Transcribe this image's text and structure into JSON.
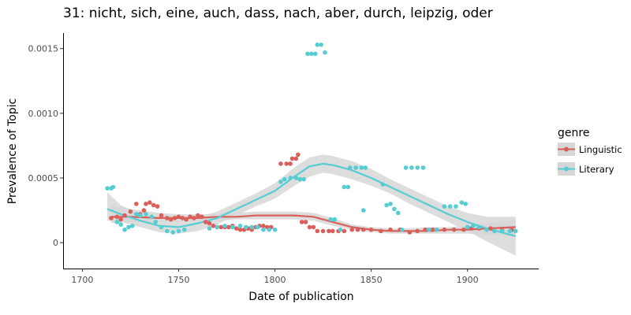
{
  "chart_data": {
    "type": "scatter",
    "title": "31: nicht, sich, eine, auch, dass, nach, aber, durch, leipzig, oder",
    "xlabel": "Date of publication",
    "ylabel": "Prevalence of Topic",
    "xlim": [
      1690,
      1937
    ],
    "ylim": [
      -0.0002,
      0.00162
    ],
    "x_ticks": [
      1700,
      1750,
      1800,
      1850,
      1900
    ],
    "x_tick_labels": [
      "1700",
      "1750",
      "1800",
      "1850",
      "1900"
    ],
    "y_ticks": [
      0,
      0.0005,
      0.001,
      0.0015
    ],
    "y_tick_labels": [
      "0",
      "0.0005",
      "0.0010",
      "0.0015"
    ],
    "grid": false,
    "legend": {
      "title": "genre",
      "placement": "right",
      "entries": [
        "Linguistic",
        "Literary"
      ]
    },
    "colors": {
      "Linguistic": "#d9605a",
      "Literary": "#56ccd3",
      "band": "#d7d7d7"
    },
    "series": [
      {
        "name": "Linguistic",
        "points": [
          [
            1715,
            0.00019
          ],
          [
            1718,
            0.0002
          ],
          [
            1720,
            0.00018
          ],
          [
            1722,
            0.00021
          ],
          [
            1725,
            0.00024
          ],
          [
            1728,
            0.0003
          ],
          [
            1730,
            0.00022
          ],
          [
            1732,
            0.00025
          ],
          [
            1733,
            0.0003
          ],
          [
            1735,
            0.00031
          ],
          [
            1737,
            0.00029
          ],
          [
            1739,
            0.00028
          ],
          [
            1741,
            0.00021
          ],
          [
            1744,
            0.00019
          ],
          [
            1746,
            0.00018
          ],
          [
            1748,
            0.00019
          ],
          [
            1750,
            0.0002
          ],
          [
            1752,
            0.00019
          ],
          [
            1754,
            0.00018
          ],
          [
            1756,
            0.0002
          ],
          [
            1758,
            0.00019
          ],
          [
            1760,
            0.00021
          ],
          [
            1762,
            0.0002
          ],
          [
            1764,
            0.00016
          ],
          [
            1766,
            0.00015
          ],
          [
            1768,
            0.00013
          ],
          [
            1770,
            0.00012
          ],
          [
            1772,
            0.00012
          ],
          [
            1774,
            0.00012
          ],
          [
            1776,
            0.00012
          ],
          [
            1778,
            0.00013
          ],
          [
            1780,
            0.00011
          ],
          [
            1782,
            0.0001
          ],
          [
            1784,
            0.0001
          ],
          [
            1786,
            0.00011
          ],
          [
            1788,
            0.0001
          ],
          [
            1790,
            0.00012
          ],
          [
            1792,
            0.00013
          ],
          [
            1794,
            0.00013
          ],
          [
            1796,
            0.00012
          ],
          [
            1798,
            0.00012
          ],
          [
            1803,
            0.00061
          ],
          [
            1806,
            0.00061
          ],
          [
            1808,
            0.00061
          ],
          [
            1809,
            0.00065
          ],
          [
            1811,
            0.00065
          ],
          [
            1812,
            0.00068
          ],
          [
            1814,
            0.00016
          ],
          [
            1816,
            0.00016
          ],
          [
            1818,
            0.00012
          ],
          [
            1820,
            0.00012
          ],
          [
            1822,
            9e-05
          ],
          [
            1825,
            9e-05
          ],
          [
            1828,
            9e-05
          ],
          [
            1830,
            9e-05
          ],
          [
            1833,
            9e-05
          ],
          [
            1836,
            9e-05
          ],
          [
            1840,
            0.0001
          ],
          [
            1843,
            0.0001
          ],
          [
            1846,
            0.0001
          ],
          [
            1850,
            0.0001
          ],
          [
            1855,
            9e-05
          ],
          [
            1860,
            0.0001
          ],
          [
            1865,
            0.0001
          ],
          [
            1870,
            8e-05
          ],
          [
            1874,
            9e-05
          ],
          [
            1878,
            0.0001
          ],
          [
            1882,
            0.0001
          ],
          [
            1888,
            0.0001
          ],
          [
            1893,
            0.0001
          ],
          [
            1898,
            0.0001
          ],
          [
            1902,
            0.00011
          ],
          [
            1906,
            0.00011
          ],
          [
            1912,
            0.00011
          ],
          [
            1918,
            0.0001
          ],
          [
            1923,
            0.0001
          ]
        ],
        "trend": [
          [
            1715,
            0.0002
          ],
          [
            1725,
            0.0002
          ],
          [
            1740,
            0.00019
          ],
          [
            1750,
            0.00019
          ],
          [
            1760,
            0.00019
          ],
          [
            1770,
            0.0002
          ],
          [
            1780,
            0.0002
          ],
          [
            1790,
            0.00021
          ],
          [
            1800,
            0.00021
          ],
          [
            1810,
            0.00021
          ],
          [
            1820,
            0.0002
          ],
          [
            1830,
            0.00016
          ],
          [
            1840,
            0.00012
          ],
          [
            1850,
            0.0001
          ],
          [
            1860,
            9e-05
          ],
          [
            1870,
            9e-05
          ],
          [
            1880,
            9e-05
          ],
          [
            1890,
            0.0001
          ],
          [
            1900,
            0.0001
          ],
          [
            1910,
            0.00011
          ],
          [
            1925,
            0.00012
          ]
        ],
        "band_lower": [
          [
            1715,
            0.00015
          ],
          [
            1725,
            0.00016
          ],
          [
            1740,
            0.00016
          ],
          [
            1750,
            0.00016
          ],
          [
            1760,
            0.00017
          ],
          [
            1770,
            0.00017
          ],
          [
            1780,
            0.00018
          ],
          [
            1790,
            0.00018
          ],
          [
            1800,
            0.00018
          ],
          [
            1810,
            0.00018
          ],
          [
            1820,
            0.00017
          ],
          [
            1830,
            0.00013
          ],
          [
            1840,
            0.0001
          ],
          [
            1850,
            8e-05
          ],
          [
            1860,
            7e-05
          ],
          [
            1870,
            7e-05
          ],
          [
            1880,
            7e-05
          ],
          [
            1890,
            7e-05
          ],
          [
            1900,
            7e-05
          ],
          [
            1910,
            6e-05
          ],
          [
            1925,
            5e-05
          ]
        ],
        "band_upper": [
          [
            1715,
            0.00029
          ],
          [
            1725,
            0.00026
          ],
          [
            1740,
            0.00023
          ],
          [
            1750,
            0.00022
          ],
          [
            1760,
            0.00022
          ],
          [
            1770,
            0.00022
          ],
          [
            1780,
            0.00023
          ],
          [
            1790,
            0.00024
          ],
          [
            1800,
            0.00024
          ],
          [
            1810,
            0.00024
          ],
          [
            1820,
            0.00023
          ],
          [
            1830,
            0.00019
          ],
          [
            1840,
            0.00014
          ],
          [
            1850,
            0.00012
          ],
          [
            1860,
            0.00011
          ],
          [
            1870,
            0.00011
          ],
          [
            1880,
            0.00012
          ],
          [
            1890,
            0.00012
          ],
          [
            1900,
            0.00013
          ],
          [
            1910,
            0.00015
          ],
          [
            1925,
            0.00018
          ]
        ]
      },
      {
        "name": "Literary",
        "points": [
          [
            1713,
            0.00042
          ],
          [
            1715,
            0.00042
          ],
          [
            1716,
            0.00043
          ],
          [
            1718,
            0.00016
          ],
          [
            1720,
            0.00014
          ],
          [
            1722,
            0.0001
          ],
          [
            1724,
            0.00012
          ],
          [
            1726,
            0.00013
          ],
          [
            1728,
            0.00022
          ],
          [
            1730,
            0.00021
          ],
          [
            1733,
            0.00022
          ],
          [
            1736,
            0.0002
          ],
          [
            1738,
            0.00016
          ],
          [
            1741,
            0.00012
          ],
          [
            1744,
            9e-05
          ],
          [
            1747,
            8e-05
          ],
          [
            1750,
            9e-05
          ],
          [
            1753,
            0.0001
          ],
          [
            1766,
            0.00011
          ],
          [
            1770,
            0.00012
          ],
          [
            1774,
            0.00013
          ],
          [
            1778,
            0.00012
          ],
          [
            1782,
            0.00013
          ],
          [
            1785,
            0.00012
          ],
          [
            1788,
            0.00012
          ],
          [
            1791,
            0.00012
          ],
          [
            1794,
            0.0001
          ],
          [
            1797,
            0.0001
          ],
          [
            1800,
            0.0001
          ],
          [
            1803,
            0.00047
          ],
          [
            1805,
            0.00049
          ],
          [
            1808,
            0.0005
          ],
          [
            1811,
            0.0005
          ],
          [
            1813,
            0.00049
          ],
          [
            1815,
            0.00049
          ],
          [
            1817,
            0.00146
          ],
          [
            1819,
            0.00146
          ],
          [
            1821,
            0.00146
          ],
          [
            1822,
            0.00153
          ],
          [
            1824,
            0.00153
          ],
          [
            1826,
            0.00147
          ],
          [
            1829,
            0.00018
          ],
          [
            1831,
            0.00018
          ],
          [
            1834,
            0.0001
          ],
          [
            1836,
            0.00043
          ],
          [
            1838,
            0.00043
          ],
          [
            1839,
            0.00058
          ],
          [
            1842,
            0.00058
          ],
          [
            1845,
            0.00058
          ],
          [
            1847,
            0.00058
          ],
          [
            1846,
            0.00025
          ],
          [
            1856,
            0.00045
          ],
          [
            1858,
            0.00029
          ],
          [
            1860,
            0.0003
          ],
          [
            1862,
            0.00026
          ],
          [
            1864,
            0.00023
          ],
          [
            1868,
            0.00058
          ],
          [
            1871,
            0.00058
          ],
          [
            1874,
            0.00058
          ],
          [
            1877,
            0.00058
          ],
          [
            1866,
            0.0001
          ],
          [
            1880,
            0.0001
          ],
          [
            1884,
            0.0001
          ],
          [
            1888,
            0.00028
          ],
          [
            1891,
            0.00028
          ],
          [
            1894,
            0.00028
          ],
          [
            1897,
            0.00031
          ],
          [
            1899,
            0.0003
          ],
          [
            1900,
            0.00012
          ],
          [
            1903,
            0.00013
          ],
          [
            1906,
            0.00012
          ],
          [
            1910,
            0.0001
          ],
          [
            1914,
            9e-05
          ],
          [
            1918,
            9e-05
          ],
          [
            1922,
            9e-05
          ],
          [
            1925,
            9e-05
          ]
        ],
        "trend": [
          [
            1713,
            0.00026
          ],
          [
            1720,
            0.00022
          ],
          [
            1730,
            0.00017
          ],
          [
            1740,
            0.00013
          ],
          [
            1750,
            0.00012
          ],
          [
            1760,
            0.00015
          ],
          [
            1770,
            0.00019
          ],
          [
            1780,
            0.00026
          ],
          [
            1790,
            0.00033
          ],
          [
            1800,
            0.0004
          ],
          [
            1810,
            0.00051
          ],
          [
            1818,
            0.00059
          ],
          [
            1825,
            0.00061
          ],
          [
            1830,
            0.0006
          ],
          [
            1840,
            0.00056
          ],
          [
            1850,
            0.0005
          ],
          [
            1860,
            0.00043
          ],
          [
            1870,
            0.00036
          ],
          [
            1880,
            0.00029
          ],
          [
            1890,
            0.00022
          ],
          [
            1900,
            0.00016
          ],
          [
            1910,
            0.00011
          ],
          [
            1925,
            5e-05
          ]
        ],
        "band_lower": [
          [
            1713,
            0.00017
          ],
          [
            1720,
            0.00016
          ],
          [
            1730,
            0.00012
          ],
          [
            1740,
            8e-05
          ],
          [
            1750,
            7e-05
          ],
          [
            1760,
            9e-05
          ],
          [
            1770,
            0.00014
          ],
          [
            1780,
            0.00021
          ],
          [
            1790,
            0.00028
          ],
          [
            1800,
            0.00034
          ],
          [
            1810,
            0.00044
          ],
          [
            1818,
            0.00051
          ],
          [
            1825,
            0.00054
          ],
          [
            1830,
            0.00053
          ],
          [
            1840,
            0.00049
          ],
          [
            1850,
            0.00044
          ],
          [
            1860,
            0.00038
          ],
          [
            1870,
            0.0003
          ],
          [
            1880,
            0.00023
          ],
          [
            1890,
            0.00016
          ],
          [
            1900,
            9e-05
          ],
          [
            1910,
            1e-05
          ],
          [
            1925,
            -0.0001
          ]
        ],
        "band_upper": [
          [
            1713,
            0.00039
          ],
          [
            1720,
            0.00029
          ],
          [
            1730,
            0.00022
          ],
          [
            1740,
            0.00018
          ],
          [
            1750,
            0.00017
          ],
          [
            1760,
            0.0002
          ],
          [
            1770,
            0.00024
          ],
          [
            1780,
            0.00031
          ],
          [
            1790,
            0.00038
          ],
          [
            1800,
            0.00046
          ],
          [
            1810,
            0.00058
          ],
          [
            1818,
            0.00066
          ],
          [
            1825,
            0.00068
          ],
          [
            1830,
            0.00067
          ],
          [
            1840,
            0.00063
          ],
          [
            1850,
            0.00057
          ],
          [
            1860,
            0.00049
          ],
          [
            1870,
            0.00042
          ],
          [
            1880,
            0.00035
          ],
          [
            1890,
            0.00028
          ],
          [
            1900,
            0.00023
          ],
          [
            1910,
            0.0002
          ],
          [
            1925,
            0.0002
          ]
        ]
      }
    ]
  }
}
